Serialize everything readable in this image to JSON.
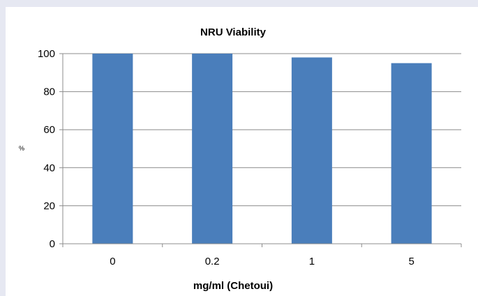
{
  "chart_data": {
    "type": "bar",
    "title": "NRU Viability",
    "xlabel": "mg/ml (Chetoui)",
    "ylabel": "%",
    "categories": [
      "0",
      "0.2",
      "1",
      "5"
    ],
    "values": [
      100,
      100,
      98,
      95
    ],
    "ylim": [
      0,
      100
    ],
    "yticks": [
      0,
      20,
      40,
      60,
      80,
      100
    ],
    "grid": true,
    "legend": "none",
    "bar_color": "#4a7ebb",
    "grid_color": "#8c8c8c"
  }
}
